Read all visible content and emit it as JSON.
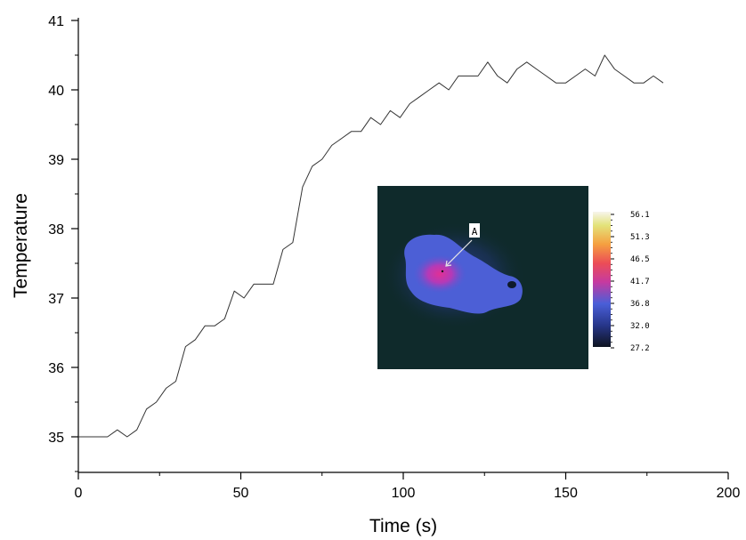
{
  "chart_data": {
    "type": "line",
    "xlabel": "Time (s)",
    "ylabel": "Temperature",
    "xlim": [
      0,
      200
    ],
    "ylim": [
      35,
      41
    ],
    "xticks": [
      0,
      50,
      100,
      150,
      200
    ],
    "yticks": [
      35,
      36,
      37,
      38,
      39,
      40,
      41
    ],
    "grid": false,
    "series": [
      {
        "x": [
          0,
          9,
          12,
          15,
          18,
          21,
          24,
          27,
          30,
          33,
          36,
          39,
          42,
          45,
          48,
          51,
          54,
          57,
          60,
          63,
          66,
          69,
          72,
          75,
          78,
          81,
          84,
          87,
          90,
          93,
          96,
          99,
          102,
          105,
          108,
          111,
          114,
          117,
          120,
          123,
          126,
          129,
          132,
          135,
          138,
          141,
          144,
          147,
          150,
          153,
          156,
          159,
          162,
          165,
          168,
          171,
          174,
          177,
          180
        ],
        "y": [
          35.0,
          35.0,
          35.1,
          35.0,
          35.1,
          35.4,
          35.5,
          35.7,
          35.8,
          36.3,
          36.4,
          36.6,
          36.6,
          36.7,
          37.1,
          37.0,
          37.2,
          37.2,
          37.2,
          37.7,
          37.8,
          38.6,
          38.9,
          39.0,
          39.2,
          39.3,
          39.4,
          39.4,
          39.6,
          39.5,
          39.7,
          39.6,
          39.8,
          39.9,
          40.0,
          40.1,
          40.0,
          40.2,
          40.2,
          40.2,
          40.4,
          40.2,
          40.1,
          40.3,
          40.4,
          40.3,
          40.2,
          40.1,
          40.1,
          40.2,
          40.3,
          40.2,
          40.5,
          40.3,
          40.2,
          40.1,
          40.1,
          40.2,
          40.1
        ]
      }
    ],
    "line_color": "#333333"
  },
  "inset": {
    "marker_label": "A",
    "colorbar_labels": [
      "56.1",
      "51.3",
      "46.5",
      "41.7",
      "36.8",
      "32.0",
      "27.2"
    ],
    "colorbar_colors": [
      "#f6f4e2",
      "#dfe060",
      "#f2a23a",
      "#e0338f",
      "#3c3ea8",
      "#1a1f40"
    ],
    "background_color": "#0f2a2b"
  }
}
